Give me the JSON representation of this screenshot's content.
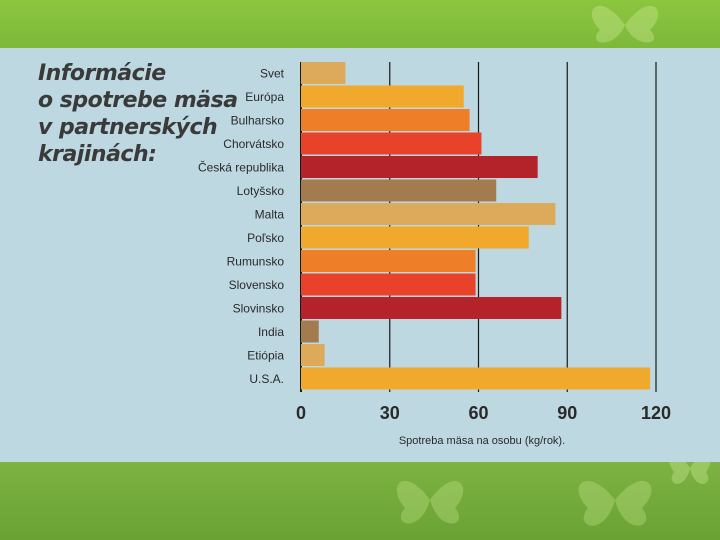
{
  "page": {
    "title_lines": [
      "Informácie",
      "o spotrebe mäsa",
      "v partnerských",
      "krajinách:"
    ]
  },
  "chart_data": {
    "type": "bar",
    "orientation": "horizontal",
    "title": "Informácie o spotrebe mäsa v partnerských krajinách:",
    "xlabel": "Spotreba mäsa na osobu (kg/rok).",
    "ylabel": "",
    "xlim": [
      0,
      120
    ],
    "xticks": [
      0,
      30,
      60,
      90,
      120
    ],
    "grid": true,
    "categories": [
      "Svet",
      "Európa",
      "Bulharsko",
      "Chorvátsko",
      "Česká republika",
      "Lotyšsko",
      "Malta",
      "Poľsko",
      "Rumunsko",
      "Slovensko",
      "Slovinsko",
      "India",
      "Etiópia",
      "U.S.A."
    ],
    "values": [
      15,
      55,
      57,
      61,
      80,
      66,
      86,
      77,
      59,
      59,
      88,
      6,
      8,
      118
    ],
    "bar_colors": [
      "#dcaa5a",
      "#f0a92c",
      "#ef7e28",
      "#e8432a",
      "#b5232a",
      "#a27c4f",
      "#dcaa5a",
      "#f0a92c",
      "#ef7e28",
      "#e8432a",
      "#b5232a",
      "#a27c4f",
      "#dcaa5a",
      "#f0a92c"
    ]
  }
}
